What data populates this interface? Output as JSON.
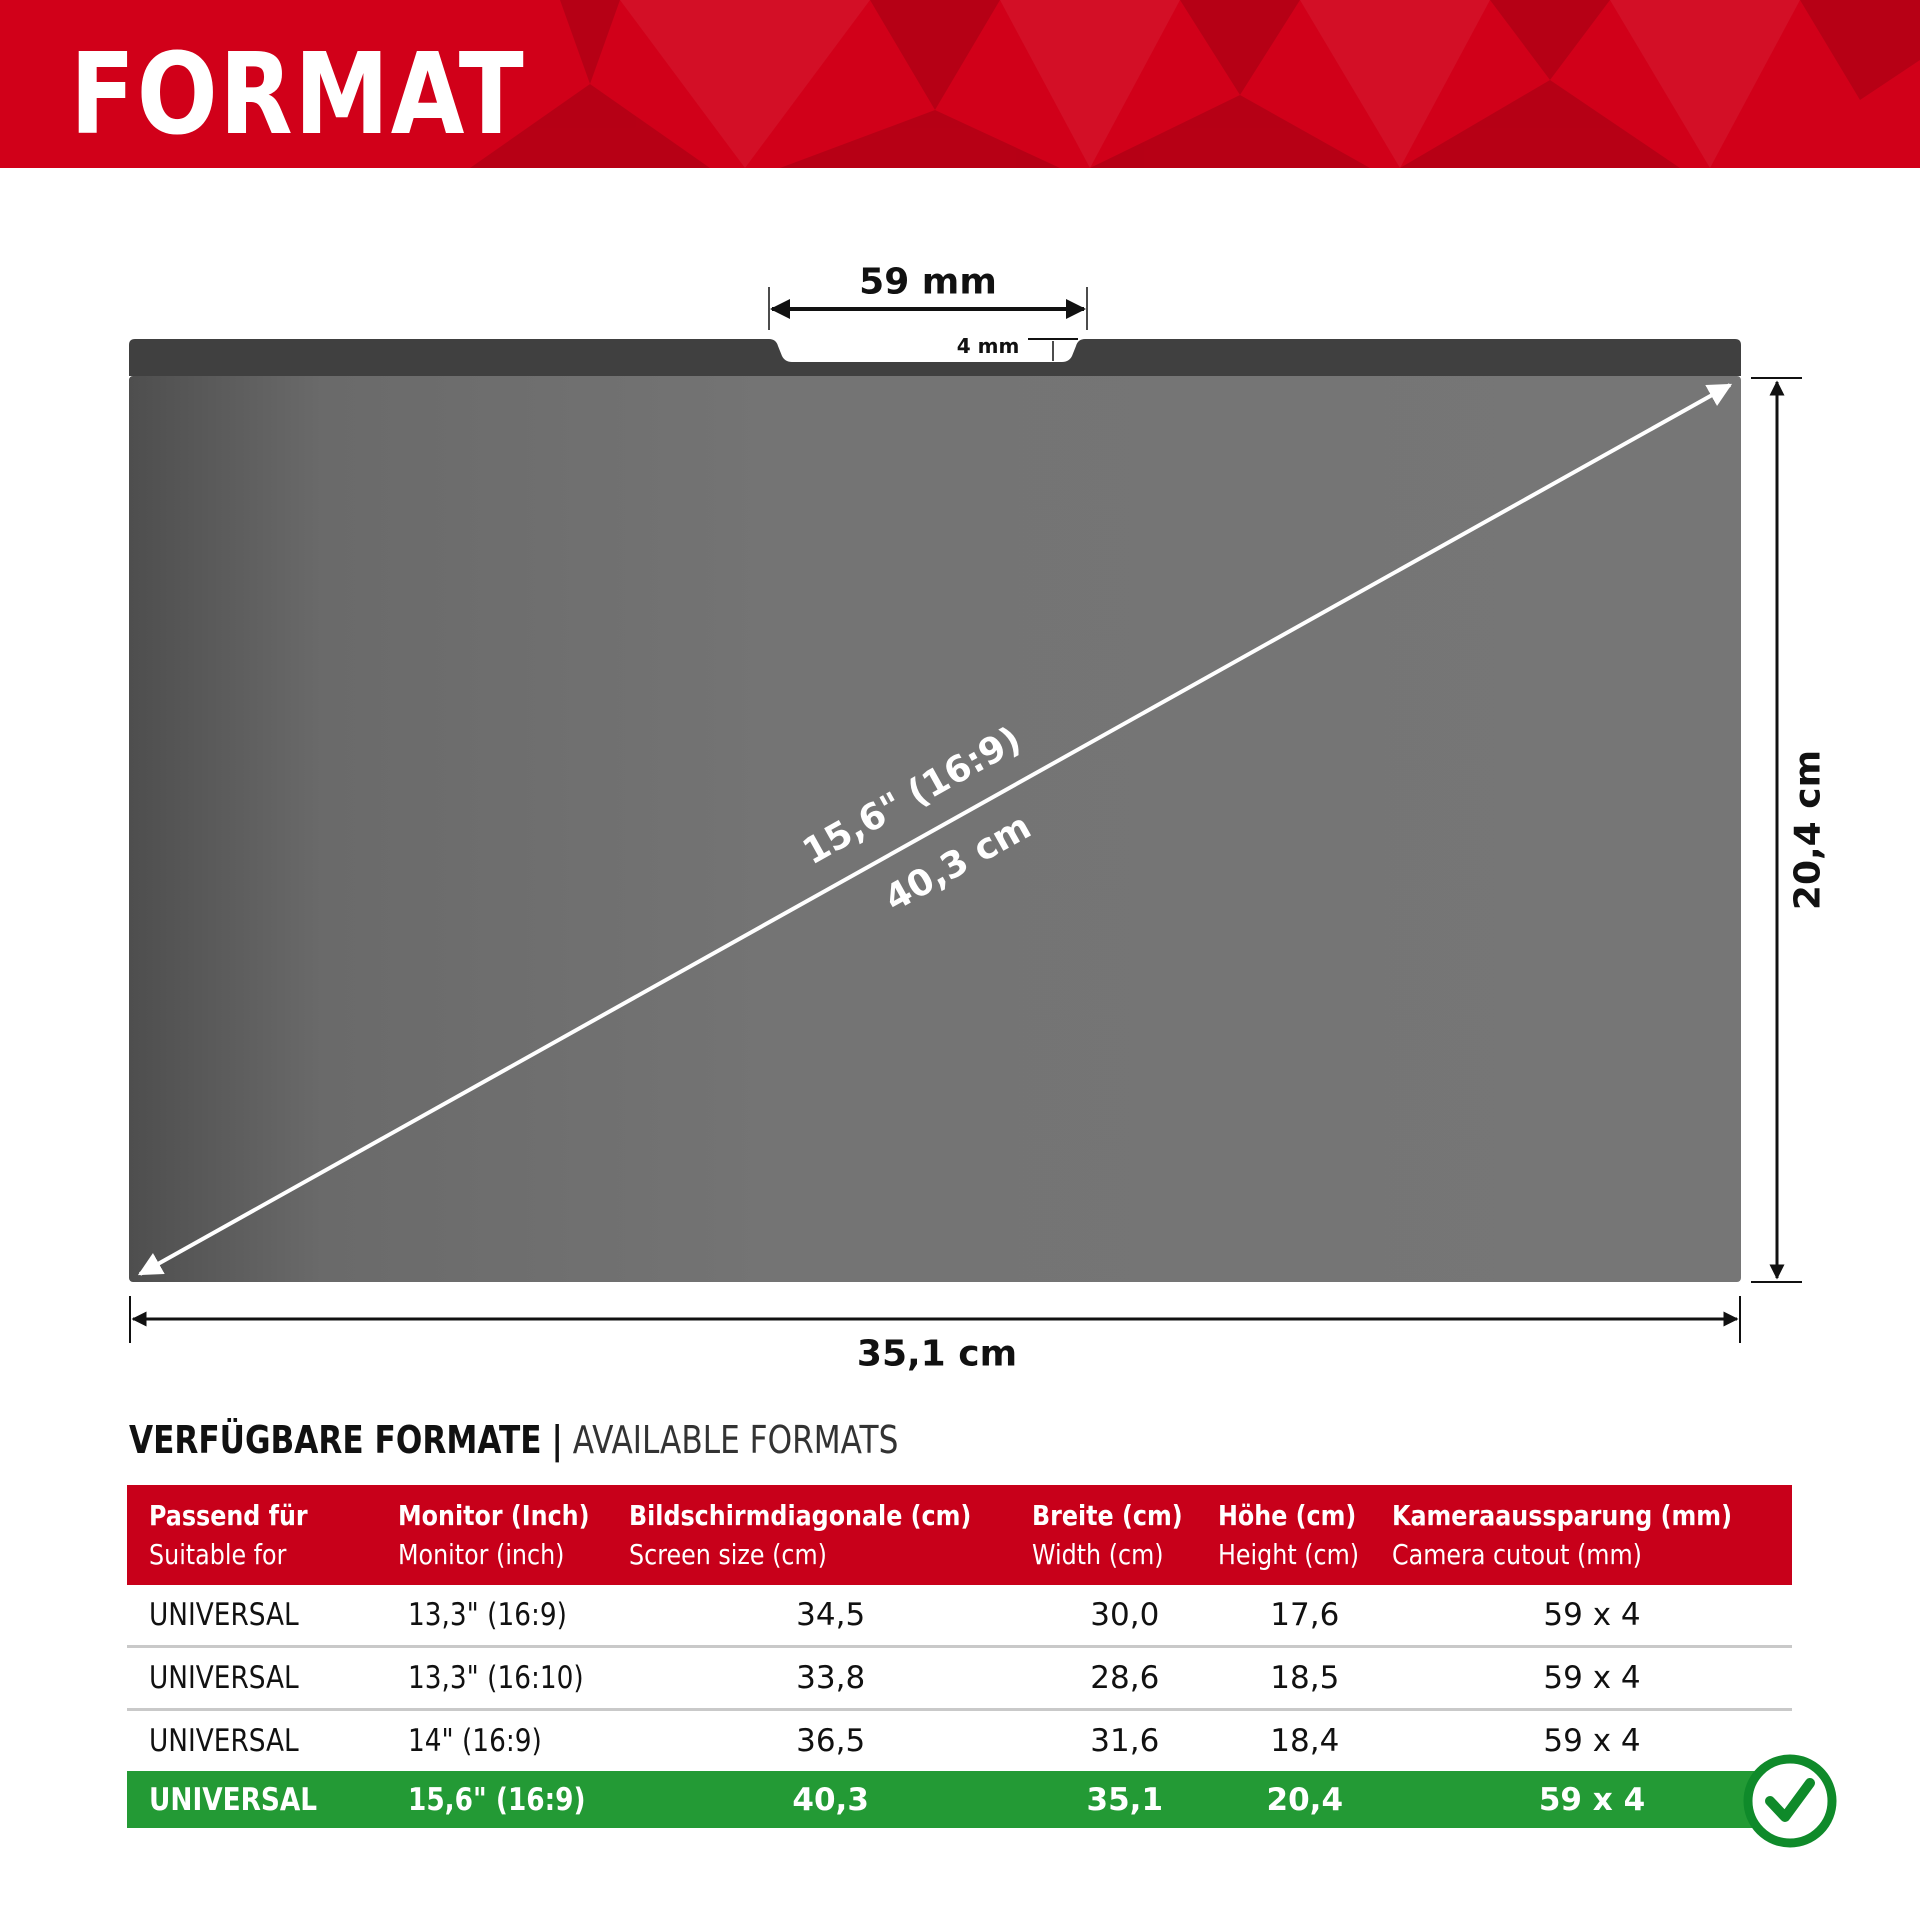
{
  "header": {
    "title": "FORMAT"
  },
  "diagram": {
    "camera_cutout_width": "59 mm",
    "camera_cutout_depth": "4 mm",
    "diagonal_inch": "15,6\" (16:9)",
    "diagonal_cm": "40,3 cm",
    "height": "20,4 cm",
    "width": "35,1 cm"
  },
  "formats": {
    "title_de": "VERFÜGBARE FORMATE",
    "separator": "|",
    "title_en": "AVAILABLE FORMATS",
    "columns": [
      {
        "de": "Passend für",
        "en": "Suitable for"
      },
      {
        "de": "Monitor (Inch)",
        "en": "Monitor (inch)"
      },
      {
        "de": "Bildschirmdiagonale (cm)",
        "en": "Screen size (cm)"
      },
      {
        "de": "Breite (cm)",
        "en": "Width (cm)"
      },
      {
        "de": "Höhe (cm)",
        "en": "Height (cm)"
      },
      {
        "de": "Kameraaussparung (mm)",
        "en": "Camera cutout (mm)"
      }
    ],
    "rows": [
      [
        "UNIVERSAL",
        "13,3\" (16:9)",
        "34,5",
        "30,0",
        "17,6",
        "59 x 4"
      ],
      [
        "UNIVERSAL",
        "13,3\" (16:10)",
        "33,8",
        "28,6",
        "18,5",
        "59 x 4"
      ],
      [
        "UNIVERSAL",
        "14\" (16:9)",
        "36,5",
        "31,6",
        "18,4",
        "59 x 4"
      ],
      [
        "UNIVERSAL",
        "15,6\" (16:9)",
        "40,3",
        "35,1",
        "20,4",
        "59 x 4"
      ]
    ],
    "selected_row": 3
  },
  "colors": {
    "brand_red": "#c8001a",
    "selected_green": "#239a35",
    "filter_dark": "#404040",
    "filter_gray": "#747474"
  },
  "icons": {
    "selected": "check-circle-icon"
  }
}
